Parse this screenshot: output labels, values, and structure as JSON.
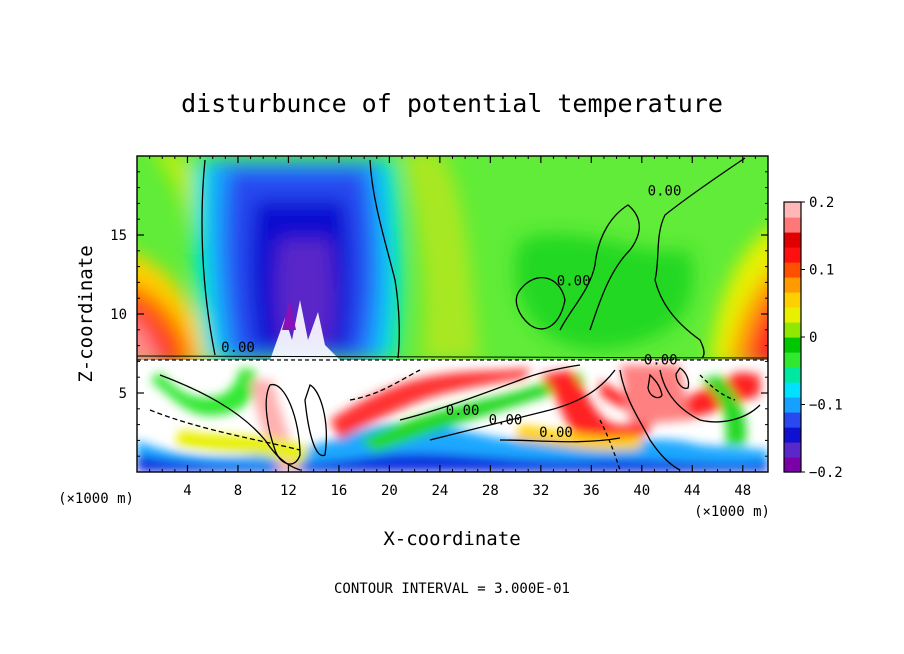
{
  "chart_data": {
    "type": "heatmap",
    "title": "disturbunce of potential temperature",
    "xlabel": "X-coordinate",
    "ylabel": "Z-coordinate",
    "x_unit_label": "(×1000 m)",
    "footer": "CONTOUR INTERVAL = 3.000E-01",
    "xlim": [
      0,
      50
    ],
    "ylim": [
      0,
      20
    ],
    "x_ticks": [
      "4",
      "8",
      "12",
      "16",
      "20",
      "24",
      "28",
      "32",
      "36",
      "40",
      "44",
      "48"
    ],
    "y_ticks": [
      "5",
      "10",
      "15"
    ],
    "colorbar": {
      "range": [
        -0.2,
        0.2
      ],
      "tick_labels": [
        "0.2",
        "0.1",
        "0",
        "−0.1",
        "−0.2"
      ],
      "tick_values": [
        0.2,
        0.1,
        0,
        -0.1,
        -0.2
      ],
      "colors": [
        "#7a00a8",
        "#5a28c8",
        "#1010d0",
        "#2848f0",
        "#18a0ff",
        "#00e0ff",
        "#00e8a0",
        "#30e830",
        "#00c800",
        "#90e800",
        "#e8f000",
        "#ffd000",
        "#ff9a00",
        "#ff5000",
        "#ff1010",
        "#e00000",
        "#ff7878",
        "#ffb8b8"
      ]
    },
    "contour_interval": 0.3,
    "contour_labels": [
      {
        "text": "0.00",
        "x": 8,
        "y": 7.6
      },
      {
        "text": "0.00",
        "x": 41.8,
        "y": 17.5
      },
      {
        "text": "0.00",
        "x": 34.6,
        "y": 11.8
      },
      {
        "text": "0.00",
        "x": 25.8,
        "y": 3.6
      },
      {
        "text": "0.00",
        "x": 29.2,
        "y": 3.0
      },
      {
        "text": "0.00",
        "x": 33.2,
        "y": 2.2
      },
      {
        "text": "0.00",
        "x": 41.5,
        "y": 6.8
      }
    ],
    "grid": false,
    "legend": "right"
  }
}
